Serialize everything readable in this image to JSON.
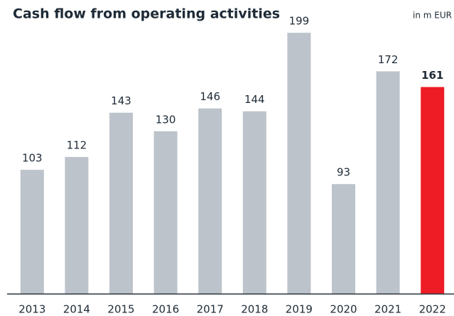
{
  "chart_data": {
    "type": "bar",
    "title": "Cash flow from operating activities",
    "subtitle": "in m EUR",
    "categories": [
      "2013",
      "2014",
      "2015",
      "2016",
      "2017",
      "2018",
      "2019",
      "2020",
      "2021",
      "2022"
    ],
    "values": [
      103,
      112,
      143,
      130,
      146,
      144,
      199,
      93,
      172,
      161
    ],
    "colors": [
      "#bcc3ca",
      "#bcc3ca",
      "#bcc3ca",
      "#bcc3ca",
      "#bcc3ca",
      "#bcc3ca",
      "#bcc3ca",
      "#bcc3ca",
      "#bcc3ca",
      "#ee1c25"
    ],
    "ylim": [
      16,
      215
    ]
  }
}
